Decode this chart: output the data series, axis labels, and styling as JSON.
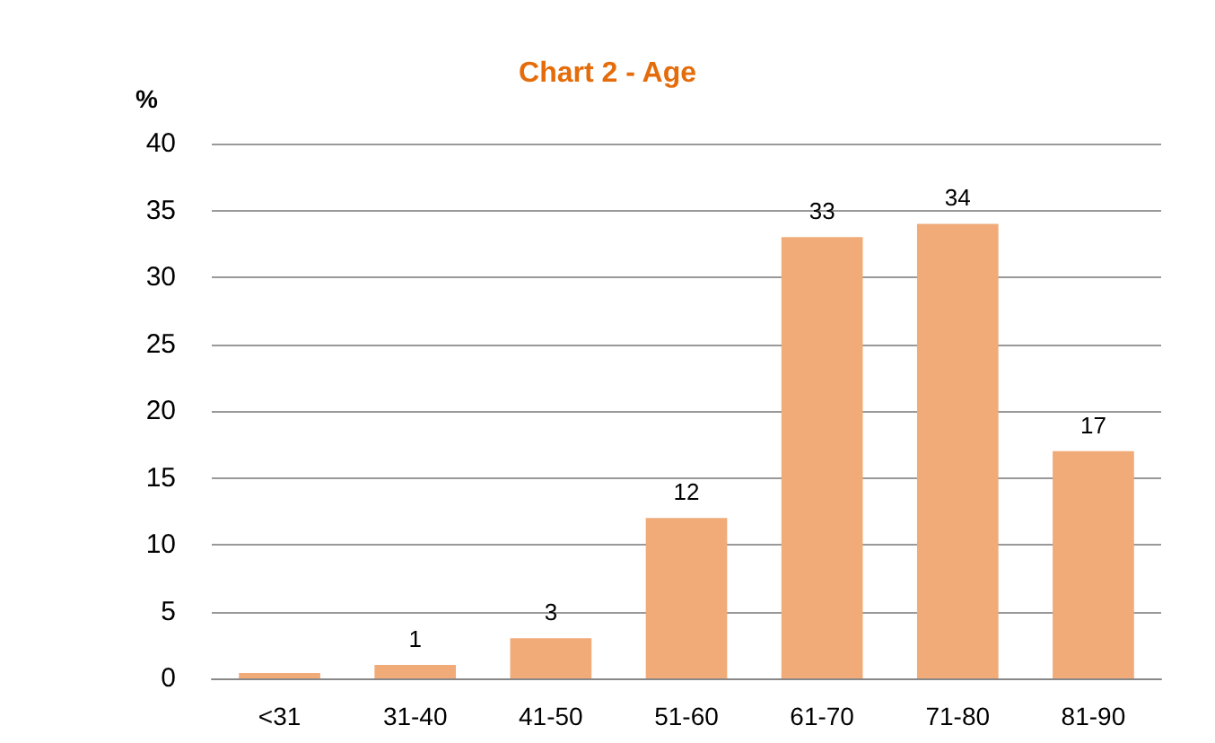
{
  "chart_data": {
    "type": "bar",
    "title": "Chart 2 - Age",
    "ylabel": "%",
    "categories": [
      "<31",
      "31-40",
      "41-50",
      "51-60",
      "61-70",
      "71-80",
      "81-90"
    ],
    "values": [
      0.4,
      1,
      3,
      12,
      33,
      34,
      17
    ],
    "value_labels": [
      null,
      "1",
      "3",
      "12",
      "33",
      "34",
      "17"
    ],
    "color": "#f0ab78",
    "ylim": [
      0,
      40
    ],
    "yticks": [
      0,
      5,
      10,
      15,
      20,
      25,
      30,
      35,
      40
    ],
    "grid": "y",
    "legend": false
  }
}
